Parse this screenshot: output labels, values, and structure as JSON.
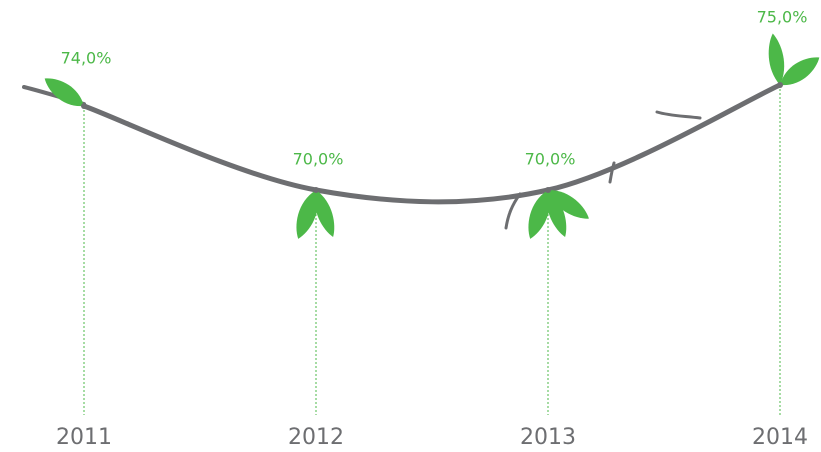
{
  "chart_data": {
    "type": "line",
    "categories": [
      "2011",
      "2012",
      "2013",
      "2014"
    ],
    "values": [
      74,
      70,
      70,
      75
    ],
    "value_labels": [
      "74,0%",
      "70,0%",
      "70,0%",
      "75,0%"
    ],
    "color": "#6d6e71"
  }
}
